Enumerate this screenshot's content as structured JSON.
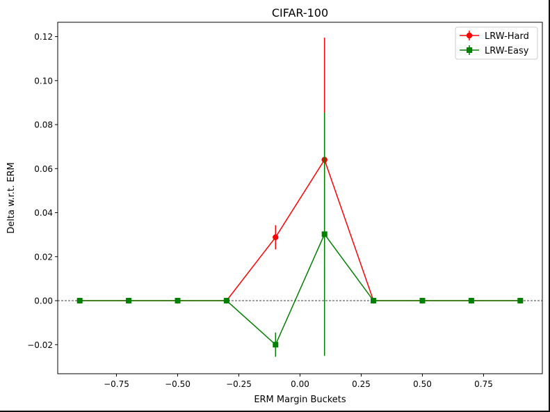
{
  "chart_data": {
    "type": "line",
    "title": "CIFAR-100",
    "xlabel": "ERM Margin Buckets",
    "ylabel": "Delta w.r.t. ERM",
    "xlim": [
      -0.99,
      0.99
    ],
    "ylim": [
      -0.0332,
      0.1265
    ],
    "xticks": [
      -0.75,
      -0.5,
      -0.25,
      0.0,
      0.25,
      0.5,
      0.75
    ],
    "xtick_labels": [
      "−0.75",
      "−0.50",
      "−0.25",
      "0.00",
      "0.25",
      "0.50",
      "0.75"
    ],
    "yticks": [
      -0.02,
      0.0,
      0.02,
      0.04,
      0.06,
      0.08,
      0.1,
      0.12
    ],
    "ytick_labels": [
      "−0.02",
      "0.00",
      "0.02",
      "0.04",
      "0.06",
      "0.08",
      "0.10",
      "0.12"
    ],
    "reference_line_y": 0.0,
    "legend_position": "top-right",
    "x": [
      -0.9,
      -0.7,
      -0.5,
      -0.3,
      -0.1,
      0.1,
      0.3,
      0.5,
      0.7,
      0.9
    ],
    "series": [
      {
        "name": "LRW-Hard",
        "color": "#ff0000",
        "marker": "circle",
        "values": [
          0.0,
          0.0,
          0.0,
          0.0,
          0.0288,
          0.064,
          0.0,
          0.0,
          0.0,
          0.0
        ],
        "errors": [
          0,
          0,
          0,
          0,
          0.0055,
          0.0555,
          0,
          0,
          0,
          0
        ]
      },
      {
        "name": "LRW-Easy",
        "color": "#008000",
        "marker": "square",
        "values": [
          0.0,
          0.0,
          0.0,
          0.0,
          -0.02,
          0.0302,
          0.0,
          0.0,
          0.0,
          0.0
        ],
        "errors": [
          0,
          0,
          0,
          0,
          0.0055,
          0.0553,
          0,
          0,
          0,
          0
        ]
      }
    ]
  }
}
